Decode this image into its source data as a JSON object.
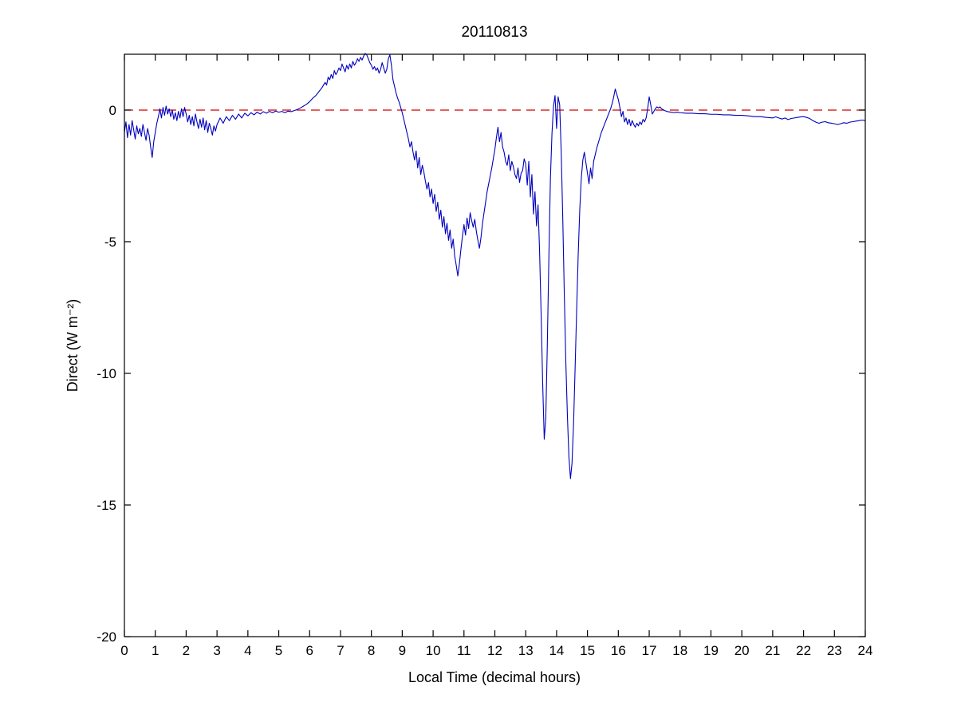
{
  "chart_data": {
    "type": "line",
    "title": "20110813",
    "xlabel": "Local Time (decimal hours)",
    "ylabel": "Direct (W m⁻²)",
    "xlim": [
      0,
      24
    ],
    "ylim": [
      -20,
      2.12
    ],
    "xticks": [
      0,
      1,
      2,
      3,
      4,
      5,
      6,
      7,
      8,
      9,
      10,
      11,
      12,
      13,
      14,
      15,
      16,
      17,
      18,
      19,
      20,
      21,
      22,
      23,
      24
    ],
    "yticks": [
      0,
      -5,
      -10,
      -15,
      -20
    ],
    "grid": false,
    "legend": "none",
    "series_color": "#0000bf",
    "reference_line": {
      "y": 0,
      "style": "dashed",
      "color": "#d40000"
    },
    "axis_color": "#000000",
    "background_color": "#ffffff",
    "points": [
      [
        0.0,
        -0.85
      ],
      [
        0.05,
        -0.45
      ],
      [
        0.1,
        -1.05
      ],
      [
        0.15,
        -0.55
      ],
      [
        0.2,
        -0.95
      ],
      [
        0.25,
        -0.4
      ],
      [
        0.3,
        -0.75
      ],
      [
        0.35,
        -1.1
      ],
      [
        0.4,
        -0.6
      ],
      [
        0.45,
        -0.9
      ],
      [
        0.5,
        -0.7
      ],
      [
        0.55,
        -1.0
      ],
      [
        0.6,
        -0.55
      ],
      [
        0.65,
        -0.85
      ],
      [
        0.7,
        -1.15
      ],
      [
        0.75,
        -0.7
      ],
      [
        0.8,
        -0.95
      ],
      [
        0.85,
        -1.4
      ],
      [
        0.9,
        -1.8
      ],
      [
        0.95,
        -1.2
      ],
      [
        1.0,
        -0.85
      ],
      [
        1.05,
        -0.5
      ],
      [
        1.1,
        -0.25
      ],
      [
        1.15,
        0.05
      ],
      [
        1.2,
        -0.3
      ],
      [
        1.25,
        0.1
      ],
      [
        1.3,
        -0.2
      ],
      [
        1.35,
        0.15
      ],
      [
        1.4,
        -0.15
      ],
      [
        1.45,
        0.05
      ],
      [
        1.5,
        -0.25
      ],
      [
        1.55,
        0.0
      ],
      [
        1.6,
        -0.35
      ],
      [
        1.65,
        -0.1
      ],
      [
        1.7,
        -0.4
      ],
      [
        1.75,
        -0.05
      ],
      [
        1.8,
        -0.3
      ],
      [
        1.85,
        0.05
      ],
      [
        1.9,
        -0.25
      ],
      [
        1.95,
        0.1
      ],
      [
        2.0,
        -0.15
      ],
      [
        2.05,
        -0.45
      ],
      [
        2.1,
        -0.2
      ],
      [
        2.15,
        -0.55
      ],
      [
        2.2,
        -0.25
      ],
      [
        2.25,
        -0.6
      ],
      [
        2.3,
        -0.15
      ],
      [
        2.35,
        -0.45
      ],
      [
        2.4,
        -0.7
      ],
      [
        2.45,
        -0.35
      ],
      [
        2.5,
        -0.65
      ],
      [
        2.55,
        -0.3
      ],
      [
        2.6,
        -0.75
      ],
      [
        2.65,
        -0.4
      ],
      [
        2.7,
        -0.85
      ],
      [
        2.75,
        -0.5
      ],
      [
        2.8,
        -0.7
      ],
      [
        2.85,
        -0.95
      ],
      [
        2.9,
        -0.6
      ],
      [
        2.95,
        -0.8
      ],
      [
        3.0,
        -0.55
      ],
      [
        3.1,
        -0.3
      ],
      [
        3.2,
        -0.5
      ],
      [
        3.3,
        -0.25
      ],
      [
        3.4,
        -0.4
      ],
      [
        3.5,
        -0.2
      ],
      [
        3.6,
        -0.35
      ],
      [
        3.7,
        -0.15
      ],
      [
        3.8,
        -0.3
      ],
      [
        3.9,
        -0.12
      ],
      [
        4.0,
        -0.22
      ],
      [
        4.1,
        -0.1
      ],
      [
        4.2,
        -0.18
      ],
      [
        4.3,
        -0.08
      ],
      [
        4.4,
        -0.15
      ],
      [
        4.5,
        -0.06
      ],
      [
        4.6,
        -0.12
      ],
      [
        4.7,
        -0.05
      ],
      [
        4.8,
        -0.1
      ],
      [
        4.9,
        -0.04
      ],
      [
        5.0,
        -0.08
      ],
      [
        5.1,
        -0.05
      ],
      [
        5.2,
        -0.1
      ],
      [
        5.3,
        -0.04
      ],
      [
        5.4,
        -0.06
      ],
      [
        5.5,
        -0.02
      ],
      [
        5.6,
        0.02
      ],
      [
        5.7,
        0.08
      ],
      [
        5.8,
        0.15
      ],
      [
        5.9,
        0.22
      ],
      [
        6.0,
        0.32
      ],
      [
        6.1,
        0.45
      ],
      [
        6.2,
        0.55
      ],
      [
        6.3,
        0.7
      ],
      [
        6.4,
        0.85
      ],
      [
        6.5,
        1.05
      ],
      [
        6.55,
        0.95
      ],
      [
        6.6,
        1.25
      ],
      [
        6.65,
        1.15
      ],
      [
        6.7,
        1.35
      ],
      [
        6.75,
        1.2
      ],
      [
        6.8,
        1.5
      ],
      [
        6.85,
        1.35
      ],
      [
        6.9,
        1.45
      ],
      [
        6.95,
        1.6
      ],
      [
        7.0,
        1.5
      ],
      [
        7.05,
        1.75
      ],
      [
        7.1,
        1.6
      ],
      [
        7.15,
        1.45
      ],
      [
        7.2,
        1.7
      ],
      [
        7.25,
        1.55
      ],
      [
        7.3,
        1.75
      ],
      [
        7.35,
        1.6
      ],
      [
        7.4,
        1.85
      ],
      [
        7.45,
        1.7
      ],
      [
        7.5,
        1.8
      ],
      [
        7.55,
        1.95
      ],
      [
        7.6,
        1.85
      ],
      [
        7.65,
        2.0
      ],
      [
        7.7,
        1.9
      ],
      [
        7.75,
        2.05
      ],
      [
        7.8,
        2.15
      ],
      [
        7.85,
        2.1
      ],
      [
        7.9,
        1.95
      ],
      [
        7.95,
        1.8
      ],
      [
        8.0,
        1.7
      ],
      [
        8.05,
        1.55
      ],
      [
        8.1,
        1.65
      ],
      [
        8.15,
        1.5
      ],
      [
        8.2,
        1.6
      ],
      [
        8.25,
        1.4
      ],
      [
        8.3,
        1.55
      ],
      [
        8.35,
        1.8
      ],
      [
        8.4,
        1.6
      ],
      [
        8.45,
        1.4
      ],
      [
        8.5,
        1.55
      ],
      [
        8.55,
        1.95
      ],
      [
        8.6,
        2.1
      ],
      [
        8.65,
        1.7
      ],
      [
        8.7,
        1.15
      ],
      [
        8.75,
        0.9
      ],
      [
        8.8,
        0.65
      ],
      [
        8.85,
        0.45
      ],
      [
        8.9,
        0.3
      ],
      [
        8.95,
        0.1
      ],
      [
        9.0,
        -0.1
      ],
      [
        9.05,
        -0.35
      ],
      [
        9.1,
        -0.6
      ],
      [
        9.15,
        -0.85
      ],
      [
        9.2,
        -1.1
      ],
      [
        9.25,
        -1.4
      ],
      [
        9.3,
        -1.2
      ],
      [
        9.35,
        -1.6
      ],
      [
        9.4,
        -1.9
      ],
      [
        9.45,
        -1.55
      ],
      [
        9.5,
        -2.2
      ],
      [
        9.55,
        -1.8
      ],
      [
        9.6,
        -2.45
      ],
      [
        9.65,
        -2.1
      ],
      [
        9.7,
        -2.35
      ],
      [
        9.75,
        -2.7
      ],
      [
        9.8,
        -3.0
      ],
      [
        9.85,
        -2.75
      ],
      [
        9.9,
        -3.3
      ],
      [
        9.95,
        -3.0
      ],
      [
        10.0,
        -3.55
      ],
      [
        10.05,
        -3.2
      ],
      [
        10.1,
        -3.85
      ],
      [
        10.15,
        -3.5
      ],
      [
        10.2,
        -4.15
      ],
      [
        10.25,
        -3.8
      ],
      [
        10.3,
        -4.45
      ],
      [
        10.35,
        -4.05
      ],
      [
        10.4,
        -4.7
      ],
      [
        10.45,
        -4.3
      ],
      [
        10.5,
        -4.95
      ],
      [
        10.55,
        -4.55
      ],
      [
        10.6,
        -5.25
      ],
      [
        10.65,
        -4.9
      ],
      [
        10.7,
        -5.55
      ],
      [
        10.75,
        -5.9
      ],
      [
        10.8,
        -6.3
      ],
      [
        10.85,
        -5.85
      ],
      [
        10.9,
        -5.3
      ],
      [
        10.95,
        -4.8
      ],
      [
        11.0,
        -4.35
      ],
      [
        11.05,
        -4.75
      ],
      [
        11.1,
        -4.1
      ],
      [
        11.15,
        -4.5
      ],
      [
        11.2,
        -3.9
      ],
      [
        11.25,
        -4.2
      ],
      [
        11.3,
        -4.45
      ],
      [
        11.35,
        -4.15
      ],
      [
        11.4,
        -4.6
      ],
      [
        11.45,
        -4.95
      ],
      [
        11.5,
        -5.25
      ],
      [
        11.55,
        -4.85
      ],
      [
        11.6,
        -4.3
      ],
      [
        11.65,
        -3.9
      ],
      [
        11.7,
        -3.5
      ],
      [
        11.75,
        -3.1
      ],
      [
        11.8,
        -2.8
      ],
      [
        11.85,
        -2.5
      ],
      [
        11.9,
        -2.2
      ],
      [
        11.95,
        -1.85
      ],
      [
        12.0,
        -1.5
      ],
      [
        12.05,
        -1.05
      ],
      [
        12.1,
        -0.65
      ],
      [
        12.15,
        -1.2
      ],
      [
        12.2,
        -0.85
      ],
      [
        12.25,
        -1.4
      ],
      [
        12.3,
        -1.6
      ],
      [
        12.35,
        -1.95
      ],
      [
        12.4,
        -2.1
      ],
      [
        12.45,
        -1.7
      ],
      [
        12.5,
        -2.3
      ],
      [
        12.55,
        -1.95
      ],
      [
        12.6,
        -2.15
      ],
      [
        12.65,
        -2.45
      ],
      [
        12.7,
        -2.6
      ],
      [
        12.75,
        -2.2
      ],
      [
        12.8,
        -2.75
      ],
      [
        12.85,
        -2.4
      ],
      [
        12.9,
        -2.3
      ],
      [
        12.95,
        -1.85
      ],
      [
        13.0,
        -2.05
      ],
      [
        13.05,
        -2.85
      ],
      [
        13.1,
        -1.95
      ],
      [
        13.15,
        -3.3
      ],
      [
        13.2,
        -2.45
      ],
      [
        13.25,
        -3.95
      ],
      [
        13.3,
        -3.1
      ],
      [
        13.35,
        -4.4
      ],
      [
        13.4,
        -3.6
      ],
      [
        13.45,
        -5.4
      ],
      [
        13.5,
        -7.8
      ],
      [
        13.55,
        -10.4
      ],
      [
        13.6,
        -12.5
      ],
      [
        13.65,
        -11.7
      ],
      [
        13.7,
        -8.9
      ],
      [
        13.75,
        -5.6
      ],
      [
        13.8,
        -2.6
      ],
      [
        13.85,
        -0.9
      ],
      [
        13.9,
        0.15
      ],
      [
        13.95,
        0.55
      ],
      [
        14.0,
        -0.7
      ],
      [
        14.05,
        0.5
      ],
      [
        14.1,
        0.2
      ],
      [
        14.15,
        -1.6
      ],
      [
        14.2,
        -4.1
      ],
      [
        14.25,
        -7.0
      ],
      [
        14.3,
        -9.6
      ],
      [
        14.35,
        -11.6
      ],
      [
        14.4,
        -13.2
      ],
      [
        14.45,
        -14.0
      ],
      [
        14.5,
        -13.4
      ],
      [
        14.55,
        -11.9
      ],
      [
        14.6,
        -9.8
      ],
      [
        14.65,
        -7.6
      ],
      [
        14.7,
        -5.5
      ],
      [
        14.75,
        -3.8
      ],
      [
        14.8,
        -2.6
      ],
      [
        14.85,
        -1.9
      ],
      [
        14.9,
        -1.6
      ],
      [
        14.95,
        -2.0
      ],
      [
        15.0,
        -2.4
      ],
      [
        15.05,
        -2.8
      ],
      [
        15.1,
        -2.2
      ],
      [
        15.15,
        -2.6
      ],
      [
        15.2,
        -1.95
      ],
      [
        15.25,
        -1.7
      ],
      [
        15.3,
        -1.45
      ],
      [
        15.35,
        -1.25
      ],
      [
        15.4,
        -1.05
      ],
      [
        15.45,
        -0.85
      ],
      [
        15.5,
        -0.7
      ],
      [
        15.55,
        -0.55
      ],
      [
        15.6,
        -0.4
      ],
      [
        15.65,
        -0.25
      ],
      [
        15.7,
        -0.1
      ],
      [
        15.75,
        0.05
      ],
      [
        15.8,
        0.25
      ],
      [
        15.85,
        0.5
      ],
      [
        15.9,
        0.8
      ],
      [
        15.95,
        0.6
      ],
      [
        16.0,
        0.4
      ],
      [
        16.05,
        0.1
      ],
      [
        16.1,
        -0.25
      ],
      [
        16.15,
        -0.05
      ],
      [
        16.2,
        -0.45
      ],
      [
        16.25,
        -0.3
      ],
      [
        16.3,
        -0.55
      ],
      [
        16.35,
        -0.35
      ],
      [
        16.4,
        -0.6
      ],
      [
        16.45,
        -0.4
      ],
      [
        16.5,
        -0.55
      ],
      [
        16.55,
        -0.65
      ],
      [
        16.6,
        -0.5
      ],
      [
        16.65,
        -0.6
      ],
      [
        16.7,
        -0.45
      ],
      [
        16.75,
        -0.55
      ],
      [
        16.8,
        -0.35
      ],
      [
        16.85,
        -0.45
      ],
      [
        16.9,
        -0.3
      ],
      [
        16.95,
        0.05
      ],
      [
        17.0,
        0.5
      ],
      [
        17.05,
        0.2
      ],
      [
        17.1,
        -0.15
      ],
      [
        17.15,
        -0.05
      ],
      [
        17.2,
        0.05
      ],
      [
        17.25,
        0.12
      ],
      [
        17.3,
        0.08
      ],
      [
        17.35,
        0.12
      ],
      [
        17.4,
        0.05
      ],
      [
        17.5,
        -0.02
      ],
      [
        17.6,
        -0.06
      ],
      [
        17.7,
        -0.08
      ],
      [
        17.8,
        -0.1
      ],
      [
        17.9,
        -0.08
      ],
      [
        18.0,
        -0.1
      ],
      [
        18.2,
        -0.12
      ],
      [
        18.4,
        -0.12
      ],
      [
        18.6,
        -0.14
      ],
      [
        18.8,
        -0.14
      ],
      [
        19.0,
        -0.16
      ],
      [
        19.2,
        -0.16
      ],
      [
        19.4,
        -0.18
      ],
      [
        19.6,
        -0.18
      ],
      [
        19.8,
        -0.2
      ],
      [
        20.0,
        -0.2
      ],
      [
        20.2,
        -0.22
      ],
      [
        20.4,
        -0.25
      ],
      [
        20.6,
        -0.25
      ],
      [
        20.8,
        -0.28
      ],
      [
        21.0,
        -0.3
      ],
      [
        21.1,
        -0.26
      ],
      [
        21.2,
        -0.3
      ],
      [
        21.3,
        -0.34
      ],
      [
        21.4,
        -0.3
      ],
      [
        21.5,
        -0.36
      ],
      [
        21.6,
        -0.32
      ],
      [
        21.7,
        -0.3
      ],
      [
        21.8,
        -0.28
      ],
      [
        21.9,
        -0.26
      ],
      [
        22.0,
        -0.25
      ],
      [
        22.1,
        -0.28
      ],
      [
        22.2,
        -0.32
      ],
      [
        22.3,
        -0.4
      ],
      [
        22.4,
        -0.46
      ],
      [
        22.5,
        -0.5
      ],
      [
        22.6,
        -0.46
      ],
      [
        22.7,
        -0.44
      ],
      [
        22.8,
        -0.48
      ],
      [
        22.9,
        -0.5
      ],
      [
        23.0,
        -0.52
      ],
      [
        23.1,
        -0.55
      ],
      [
        23.2,
        -0.52
      ],
      [
        23.3,
        -0.48
      ],
      [
        23.4,
        -0.5
      ],
      [
        23.5,
        -0.46
      ],
      [
        23.6,
        -0.44
      ],
      [
        23.7,
        -0.42
      ],
      [
        23.8,
        -0.4
      ],
      [
        23.9,
        -0.38
      ],
      [
        24.0,
        -0.4
      ]
    ]
  }
}
